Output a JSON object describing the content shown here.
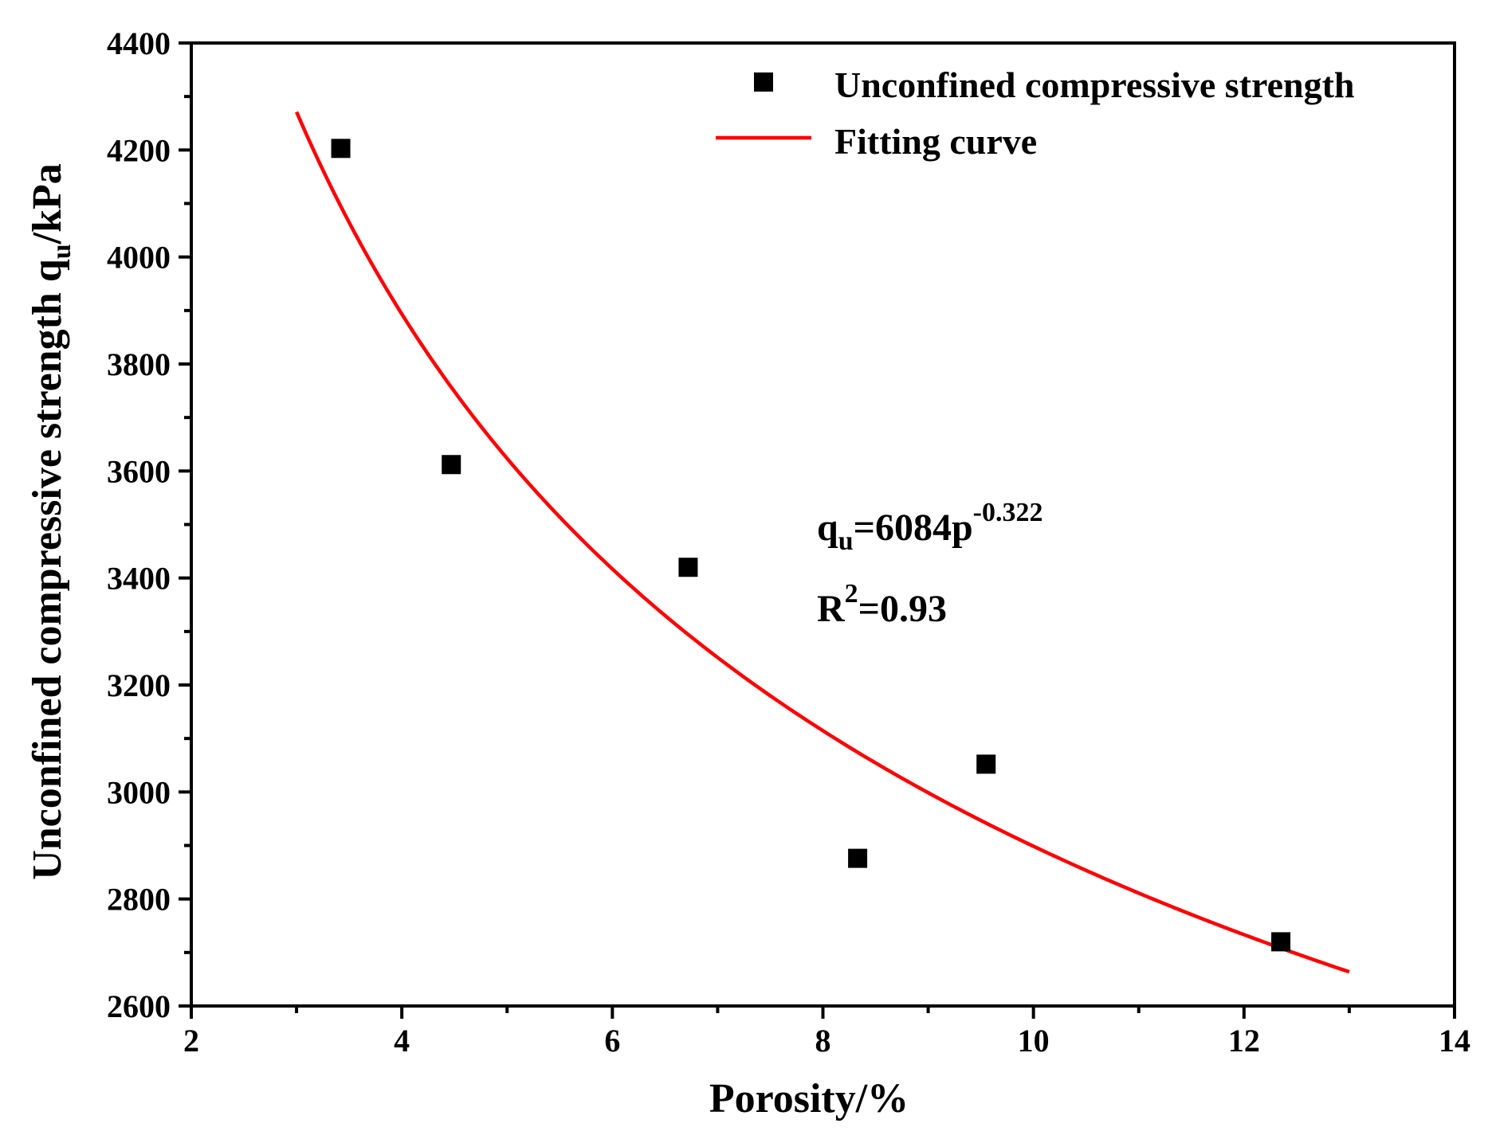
{
  "chart_data": {
    "type": "scatter",
    "title": "",
    "xlabel": "Porosity/%",
    "ylabel_main": "Unconfined compressive strength q",
    "ylabel_sub": "u",
    "ylabel_unit": "/kPa",
    "xlim": [
      2,
      14
    ],
    "ylim": [
      2600,
      4400
    ],
    "x_ticks": [
      2,
      4,
      6,
      8,
      10,
      12,
      14
    ],
    "y_ticks": [
      2600,
      2800,
      3000,
      3200,
      3400,
      3600,
      3800,
      4000,
      4200,
      4400
    ],
    "grid": false,
    "legend_position": "top-right",
    "series": [
      {
        "name": "Unconfined compressive strength",
        "kind": "scatter",
        "marker": "square",
        "color": "#000000",
        "x": [
          3.42,
          4.47,
          6.72,
          8.33,
          9.55,
          12.35
        ],
        "y": [
          4203,
          3612,
          3420,
          2876,
          3052,
          2720
        ]
      },
      {
        "name": "Fitting curve",
        "kind": "line",
        "color": "#ff0000",
        "equation": {
          "a": 6084,
          "b": -0.322
        },
        "x_range": [
          3,
          13
        ]
      }
    ],
    "annotation": {
      "eq_q": "q",
      "eq_sub": "u",
      "eq_body": "=6084p",
      "eq_exp": "-0.322",
      "r2_r": "R",
      "r2_exp": "2",
      "r2_value": "=0.93"
    }
  }
}
